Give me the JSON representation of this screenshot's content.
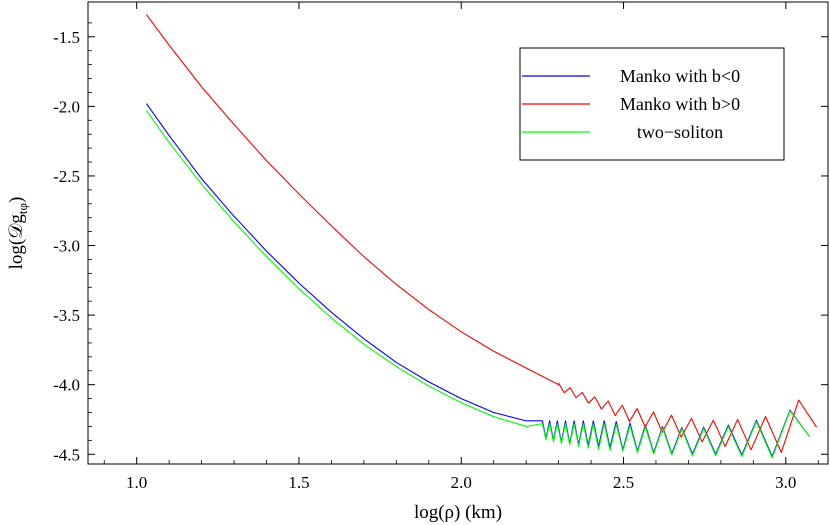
{
  "chart_data": {
    "type": "line",
    "xlabel": "log(ρ) (km)",
    "ylabel": {
      "main": "log(𝒟g",
      "subscript": "tφ",
      "close": ")"
    },
    "xlim": [
      0.85,
      3.13
    ],
    "ylim": [
      -4.57,
      -1.25
    ],
    "xticks": [
      1.0,
      1.5,
      2.0,
      2.5,
      3.0
    ],
    "yticks": [
      -1.5,
      -2.0,
      -2.5,
      -3.0,
      -3.5,
      -4.0,
      -4.5
    ],
    "xtick_labels": [
      "1.0",
      "1.5",
      "2.0",
      "2.5",
      "3.0"
    ],
    "ytick_labels": [
      "-1.5",
      "-2.0",
      "-2.5",
      "-3.0",
      "-3.5",
      "-4.0",
      "-4.5"
    ],
    "grid": false,
    "legend_position": "top-right",
    "series": [
      {
        "name": "Manko with b<0",
        "color": "#0000ff",
        "x": [
          1.03,
          1.1,
          1.2,
          1.3,
          1.4,
          1.5,
          1.6,
          1.7,
          1.8,
          1.9,
          2.0,
          2.1,
          2.2
        ],
        "y": [
          -1.98,
          -2.21,
          -2.52,
          -2.79,
          -3.04,
          -3.27,
          -3.48,
          -3.67,
          -3.84,
          -3.98,
          -4.1,
          -4.2,
          -4.26
        ],
        "oscillating_tail": {
          "x": [
            2.25,
            2.3,
            2.35,
            2.4,
            2.45,
            2.5,
            2.6,
            2.7,
            2.8,
            2.9,
            3.0,
            3.06,
            3.13
          ],
          "upper": [
            -4.26,
            -4.26,
            -4.26,
            -4.26,
            -4.26,
            -4.27,
            -4.3,
            -4.31,
            -4.3,
            -4.26,
            -4.21,
            -4.08,
            -4.22
          ],
          "lower": [
            -4.38,
            -4.41,
            -4.43,
            -4.44,
            -4.45,
            -4.47,
            -4.49,
            -4.5,
            -4.5,
            -4.51,
            -4.52,
            -4.4,
            -4.25
          ],
          "period": [
            0.022,
            0.025,
            0.028,
            0.032,
            0.037,
            0.044,
            0.055,
            0.068,
            0.08,
            0.095,
            0.12,
            0.12,
            0.12
          ]
        }
      },
      {
        "name": "Manko with b>0",
        "color": "#ff0000",
        "x": [
          1.03,
          1.1,
          1.2,
          1.3,
          1.4,
          1.5,
          1.6,
          1.7,
          1.8,
          1.9,
          2.0,
          2.1,
          2.2,
          2.3
        ],
        "y": [
          -1.34,
          -1.56,
          -1.86,
          -2.13,
          -2.39,
          -2.63,
          -2.86,
          -3.08,
          -3.28,
          -3.46,
          -3.62,
          -3.76,
          -3.88,
          -4.0
        ],
        "oscillating_tail": {
          "x": [
            2.3,
            2.4,
            2.5,
            2.6,
            2.7,
            2.8,
            2.9,
            3.0,
            3.06,
            3.13
          ],
          "upper": [
            -3.99,
            -4.08,
            -4.15,
            -4.2,
            -4.24,
            -4.26,
            -4.24,
            -4.21,
            -4.06,
            -4.2
          ],
          "lower": [
            -4.04,
            -4.14,
            -4.25,
            -4.33,
            -4.39,
            -4.44,
            -4.47,
            -4.49,
            -4.35,
            -4.26
          ],
          "period": [
            0.035,
            0.04,
            0.045,
            0.055,
            0.065,
            0.075,
            0.09,
            0.11,
            0.11,
            0.11
          ]
        }
      },
      {
        "name": "two−soliton",
        "color": "#00ff00",
        "x": [
          1.03,
          1.1,
          1.2,
          1.3,
          1.4,
          1.5,
          1.6,
          1.7,
          1.8,
          1.9,
          2.0,
          2.1,
          2.2
        ],
        "y": [
          -2.03,
          -2.26,
          -2.56,
          -2.83,
          -3.08,
          -3.31,
          -3.52,
          -3.71,
          -3.87,
          -4.01,
          -4.13,
          -4.23,
          -4.3
        ],
        "oscillating_tail": {
          "x": [
            2.25,
            2.3,
            2.35,
            2.4,
            2.45,
            2.5,
            2.6,
            2.7,
            2.8,
            2.9,
            3.0,
            3.06,
            3.13
          ],
          "upper": [
            -4.28,
            -4.28,
            -4.28,
            -4.28,
            -4.28,
            -4.29,
            -4.31,
            -4.32,
            -4.31,
            -4.27,
            -4.22,
            -4.07,
            -4.22
          ],
          "lower": [
            -4.39,
            -4.42,
            -4.44,
            -4.46,
            -4.47,
            -4.48,
            -4.5,
            -4.51,
            -4.51,
            -4.52,
            -4.53,
            -4.4,
            -4.25
          ],
          "period": [
            0.022,
            0.025,
            0.028,
            0.032,
            0.037,
            0.044,
            0.055,
            0.068,
            0.08,
            0.095,
            0.12,
            0.12,
            0.12
          ]
        }
      }
    ]
  }
}
